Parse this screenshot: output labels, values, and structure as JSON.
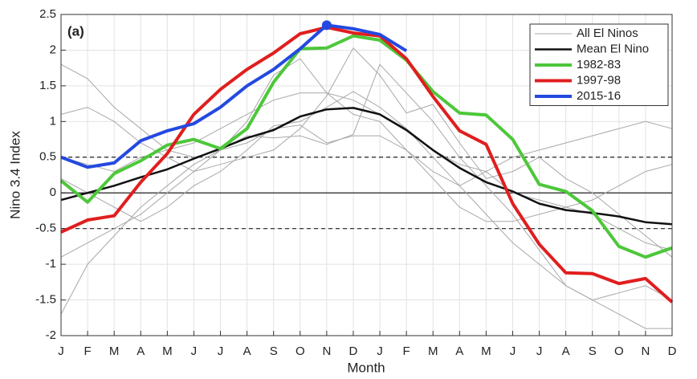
{
  "chart_data": {
    "type": "line",
    "annotation": "(a)",
    "x_label": "Month",
    "y_label": "Nino 3.4 Index",
    "categories": [
      "J",
      "F",
      "M",
      "A",
      "M",
      "J",
      "J",
      "A",
      "S",
      "O",
      "N",
      "D",
      "J",
      "F",
      "M",
      "A",
      "M",
      "J",
      "J",
      "A",
      "S",
      "O",
      "N",
      "D"
    ],
    "ylim": [
      -2,
      2.5
    ],
    "yticks": [
      -2,
      -1.5,
      -1,
      -0.5,
      0,
      0.5,
      1,
      1.5,
      2,
      2.5
    ],
    "grid": true,
    "hlines": [
      {
        "y": 0.5,
        "style": "dashed"
      },
      {
        "y": 0,
        "style": "solid"
      },
      {
        "y": -0.5,
        "style": "dashed"
      }
    ],
    "legend": "upper right",
    "series": [
      {
        "name": "All El Ninos",
        "color": "#a8a8a8",
        "lines": [
          [
            1.8,
            1.6,
            1.2,
            0.9,
            0.6,
            0.7,
            0.9,
            1.1,
            1.3,
            1.4,
            1.4,
            1.3,
            1.1,
            0.9,
            0.5,
            0.1,
            -0.3,
            -0.7,
            -1.0,
            -1.3,
            -1.5,
            -1.7,
            -1.9,
            -1.9
          ],
          [
            -1.7,
            -1.0,
            -0.6,
            -0.2,
            0.1,
            0.4,
            0.6,
            0.7,
            0.9,
            0.95,
            0.7,
            0.8,
            0.8,
            0.6,
            0.3,
            0.1,
            0.3,
            0.5,
            0.6,
            0.7,
            0.8,
            0.9,
            1.0,
            0.9
          ],
          [
            -0.9,
            -0.7,
            -0.5,
            -0.3,
            0.0,
            0.3,
            0.6,
            1.0,
            1.65,
            1.88,
            1.4,
            1.1,
            1.0,
            0.6,
            0.2,
            -0.2,
            -0.4,
            -0.4,
            -0.3,
            -0.2,
            -0.3,
            -0.5,
            -0.7,
            -0.8
          ],
          [
            0.5,
            0.4,
            0.3,
            0.5,
            0.6,
            0.5,
            0.6,
            0.8,
            0.77,
            0.8,
            0.68,
            0.82,
            1.8,
            1.4,
            1.0,
            0.5,
            0.1,
            -0.3,
            -0.8,
            -1.3,
            -1.5,
            -1.4,
            -1.3,
            -1.5
          ],
          [
            1.1,
            1.2,
            1.0,
            0.7,
            0.5,
            0.3,
            0.4,
            0.5,
            0.6,
            0.9,
            1.36,
            2.03,
            1.65,
            1.12,
            1.24,
            0.7,
            0.2,
            0.3,
            0.5,
            0.2,
            0.0,
            -0.3,
            -0.6,
            -0.9
          ],
          [
            0.2,
            0.0,
            -0.2,
            -0.4,
            -0.2,
            0.1,
            0.3,
            0.6,
            0.94,
            1.0,
            1.2,
            1.42,
            1.2,
            0.9,
            0.6,
            0.4,
            0.3,
            0.0,
            -0.1,
            -0.2,
            -0.1,
            0.1,
            0.3,
            0.4
          ]
        ]
      },
      {
        "name": "Mean El Nino",
        "color": "#111111",
        "values": [
          -0.1,
          0,
          0.1,
          0.22,
          0.33,
          0.48,
          0.62,
          0.77,
          0.88,
          1.07,
          1.17,
          1.19,
          1.1,
          0.88,
          0.6,
          0.35,
          0.15,
          0.02,
          -0.15,
          -0.24,
          -0.28,
          -0.33,
          -0.41,
          -0.44
        ]
      },
      {
        "name": "1982-83",
        "color": "#4dc73a",
        "values": [
          0.17,
          -0.13,
          0.27,
          0.45,
          0.67,
          0.75,
          0.62,
          0.9,
          1.55,
          2.02,
          2.03,
          2.2,
          2.14,
          1.86,
          1.42,
          1.12,
          1.09,
          0.75,
          0.12,
          0.02,
          -0.25,
          -0.75,
          -0.9,
          -0.77
        ]
      },
      {
        "name": "1997-98",
        "color": "#e01e1e",
        "values": [
          -0.55,
          -0.38,
          -0.32,
          0.15,
          0.55,
          1.1,
          1.45,
          1.73,
          1.96,
          2.23,
          2.32,
          2.24,
          2.2,
          1.88,
          1.35,
          0.87,
          0.68,
          -0.15,
          -0.72,
          -1.12,
          -1.13,
          -1.27,
          -1.2,
          -1.53
        ]
      },
      {
        "name": "2015-16",
        "color": "#2449e0",
        "values": [
          0.5,
          0.36,
          0.42,
          0.73,
          0.87,
          0.97,
          1.2,
          1.5,
          1.73,
          2.02,
          2.35,
          2.3,
          2.22,
          1.99,
          null,
          null,
          null,
          null,
          null,
          null,
          null,
          null,
          null,
          null
        ]
      }
    ]
  }
}
